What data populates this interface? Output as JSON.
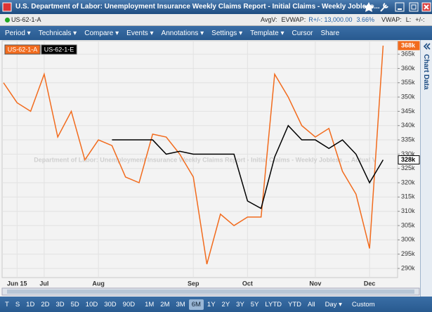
{
  "header": {
    "title": "U.S. Department of Labor: Unemployment Insurance Weekly Claims Report - Initial Claims - Weekly Jobless..."
  },
  "info_bar": {
    "ticker": "US-62-1-A",
    "items": [
      "AvgV:",
      "EVWAP:",
      "R+/-: 13,000.00",
      "3.66%",
      "VWAP:",
      "L:",
      "+/-:"
    ]
  },
  "menu": [
    "Period ▾",
    "Technicals ▾",
    "Compare ▾",
    "Events ▾",
    "Annotations ▾",
    "Settings ▾",
    "Template ▾",
    "Cursor",
    "Share"
  ],
  "side_panel": "Chart Data",
  "toolbar": {
    "buttons": [
      "T",
      "S",
      "1D",
      "2D",
      "3D",
      "5D",
      "10D",
      "30D",
      "90D",
      "1M",
      "2M",
      "3M",
      "6M",
      "1Y",
      "2Y",
      "3Y",
      "5Y",
      "LYTD",
      "YTD",
      "All",
      "Day ▾",
      "Custom"
    ],
    "selected": "6M"
  },
  "chart_data": {
    "type": "line",
    "watermark": "Department of Labor: Unemployment Insurance Weekly Claims Report - Initial Claims - Weekly Jobless ... Actual V",
    "categories": [
      null,
      "Jun 15",
      null,
      "Jul",
      null,
      null,
      null,
      "Aug",
      null,
      null,
      null,
      null,
      null,
      null,
      "Sep",
      null,
      null,
      null,
      "Oct",
      null,
      null,
      null,
      null,
      "Nov",
      null,
      null,
      null,
      "Dec",
      null
    ],
    "series": [
      {
        "name": "US-62-1-A",
        "color": "#f26b1d",
        "values": [
          355,
          348,
          345,
          358,
          336,
          345,
          328,
          335,
          333,
          322,
          320,
          337,
          336,
          330,
          322,
          291.5,
          309,
          305,
          308,
          308,
          358,
          350,
          340,
          336,
          339,
          324,
          316,
          297,
          368
        ],
        "value_labels": [
          null,
          null,
          null,
          null,
          null,
          null,
          null,
          null,
          null,
          null,
          null,
          null,
          null,
          null,
          null,
          null,
          null,
          null,
          null,
          null,
          null,
          null,
          null,
          null,
          null,
          null,
          null,
          null,
          "368k"
        ]
      },
      {
        "name": "US-62-1-E",
        "color": "#000000",
        "values": [
          null,
          null,
          null,
          null,
          null,
          null,
          null,
          null,
          335,
          335,
          335,
          335,
          330,
          331,
          330,
          330,
          330,
          330,
          313.6,
          311,
          329,
          340,
          335,
          335,
          332,
          335,
          330,
          320,
          328
        ],
        "value_labels": [
          null,
          null,
          null,
          null,
          null,
          null,
          null,
          null,
          null,
          null,
          null,
          null,
          null,
          null,
          null,
          null,
          null,
          null,
          null,
          null,
          null,
          null,
          null,
          null,
          null,
          null,
          null,
          null,
          "328k"
        ]
      }
    ],
    "ylim": [
      286.8,
      369.7
    ],
    "yticks": [
      {
        "value": 290,
        "label": "290k"
      },
      {
        "value": 295,
        "label": "295k"
      },
      {
        "value": 300,
        "label": "300k"
      },
      {
        "value": 305,
        "label": "305k"
      },
      {
        "value": 310,
        "label": "310k"
      },
      {
        "value": 315,
        "label": "315k"
      },
      {
        "value": 320,
        "label": "320k"
      },
      {
        "value": 325,
        "label": "325k"
      },
      {
        "value": 330,
        "label": "330k"
      },
      {
        "value": 335,
        "label": "335k"
      },
      {
        "value": 340,
        "label": "340k"
      },
      {
        "value": 345,
        "label": "345k"
      },
      {
        "value": 350,
        "label": "350k"
      },
      {
        "value": 355,
        "label": "355k"
      },
      {
        "value": 360,
        "label": "360k"
      },
      {
        "value": 365,
        "label": "365k"
      }
    ],
    "grid": true
  }
}
